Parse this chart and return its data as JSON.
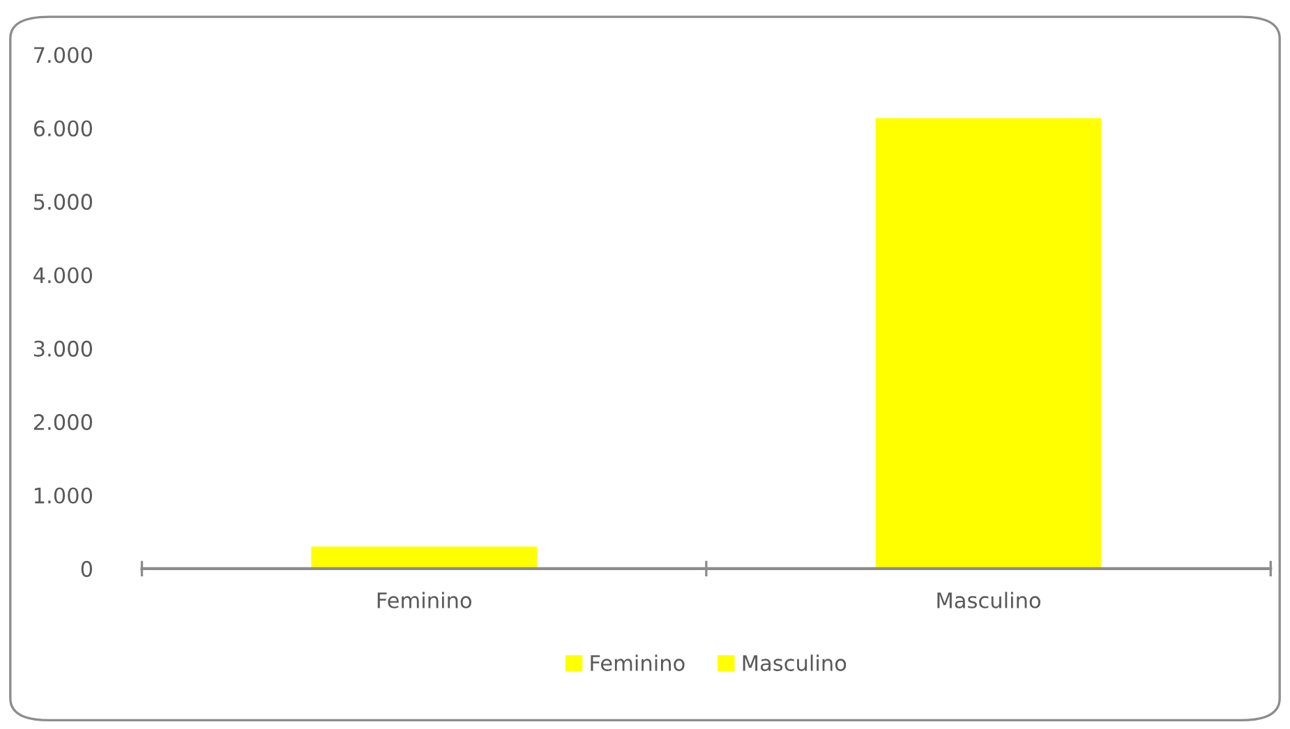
{
  "chart_data": {
    "type": "bar",
    "categories": [
      "Feminino",
      "Masculino"
    ],
    "series": [
      {
        "name": "Feminino",
        "color": "#ffff00",
        "values": [
          300,
          null
        ]
      },
      {
        "name": "Masculino",
        "color": "#ffff00",
        "values": [
          null,
          6135
        ]
      }
    ],
    "ylim": [
      0,
      7000
    ],
    "yticks": [
      {
        "value": 0,
        "label": "0"
      },
      {
        "value": 1000,
        "label": "1.000"
      },
      {
        "value": 2000,
        "label": "2.000"
      },
      {
        "value": 3000,
        "label": "3.000"
      },
      {
        "value": 4000,
        "label": "4.000"
      },
      {
        "value": 5000,
        "label": "5.000"
      },
      {
        "value": 6000,
        "label": "6.000"
      },
      {
        "value": 7000,
        "label": "7.000"
      }
    ],
    "grid": false,
    "legend": "bottom"
  }
}
